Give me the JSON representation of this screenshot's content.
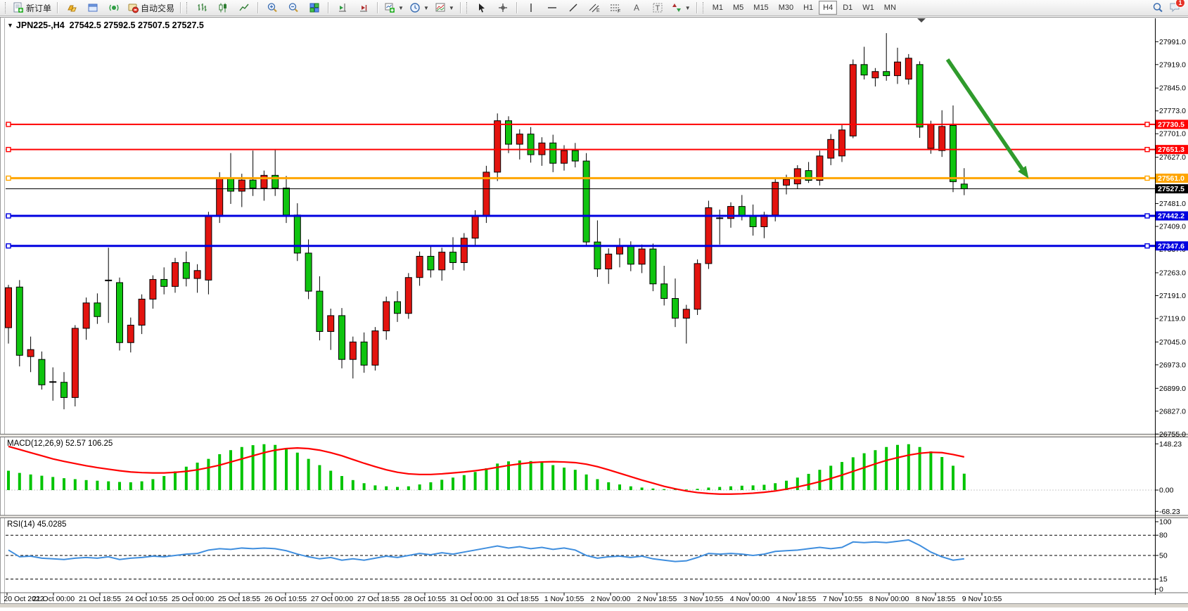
{
  "toolbar": {
    "new_order_label": "新订单",
    "autotrading_label": "自动交易",
    "timeframes": [
      "M1",
      "M5",
      "M15",
      "M30",
      "H1",
      "H4",
      "D1",
      "W1",
      "MN"
    ],
    "active_timeframe": "H4",
    "notification_badge": "1"
  },
  "chart": {
    "symbol_period": "JPN225-,H4",
    "ohlc_text": "27542.5 27592.5 27507.5 27527.5"
  },
  "indicators": {
    "macd_label": "MACD(12,26,9) 52.57 106.25",
    "rsi_label": "RSI(14) 45.0285"
  },
  "chart_data": {
    "type": "candlestick",
    "symbol": "JPN225-",
    "timeframe": "H4",
    "bull_color": "#e3140f",
    "bear_color": "#0fc40f",
    "current_bar": {
      "open": 27542.5,
      "high": 27592.5,
      "low": 27507.5,
      "close": 27527.5
    },
    "candles": [
      [
        27090,
        27225,
        27040,
        27216
      ],
      [
        27218,
        27240,
        26968,
        27003
      ],
      [
        26999,
        27062,
        26950,
        27021
      ],
      [
        26990,
        27015,
        26895,
        26910
      ],
      [
        26920,
        26965,
        26860,
        26918
      ],
      [
        26918,
        26950,
        26833,
        26870
      ],
      [
        26870,
        27098,
        26842,
        27088
      ],
      [
        27088,
        27185,
        27052,
        27168
      ],
      [
        27168,
        27198,
        27102,
        27125
      ],
      [
        27238,
        27342,
        27105,
        27240
      ],
      [
        27232,
        27248,
        27018,
        27043
      ],
      [
        27043,
        27122,
        27012,
        27098
      ],
      [
        27098,
        27195,
        27070,
        27180
      ],
      [
        27180,
        27255,
        27150,
        27242
      ],
      [
        27242,
        27280,
        27195,
        27220
      ],
      [
        27220,
        27310,
        27200,
        27295
      ],
      [
        27295,
        27330,
        27220,
        27245
      ],
      [
        27245,
        27290,
        27200,
        27270
      ],
      [
        27240,
        27455,
        27195,
        27440
      ],
      [
        27440,
        27580,
        27420,
        27560
      ],
      [
        27560,
        27640,
        27480,
        27520
      ],
      [
        27520,
        27575,
        27470,
        27555
      ],
      [
        27555,
        27648,
        27505,
        27530
      ],
      [
        27530,
        27585,
        27490,
        27570
      ],
      [
        27570,
        27652,
        27505,
        27530
      ],
      [
        27530,
        27568,
        27420,
        27445
      ],
      [
        27445,
        27482,
        27300,
        27325
      ],
      [
        27325,
        27368,
        27180,
        27205
      ],
      [
        27205,
        27252,
        27050,
        27078
      ],
      [
        27078,
        27150,
        27020,
        27128
      ],
      [
        27128,
        27152,
        26962,
        26990
      ],
      [
        26990,
        27062,
        26930,
        27045
      ],
      [
        27045,
        27075,
        26948,
        26972
      ],
      [
        26972,
        27092,
        26955,
        27080
      ],
      [
        27080,
        27188,
        27052,
        27172
      ],
      [
        27172,
        27205,
        27108,
        27135
      ],
      [
        27135,
        27262,
        27118,
        27248
      ],
      [
        27248,
        27330,
        27222,
        27315
      ],
      [
        27315,
        27345,
        27248,
        27272
      ],
      [
        27272,
        27342,
        27238,
        27328
      ],
      [
        27328,
        27375,
        27272,
        27295
      ],
      [
        27295,
        27388,
        27270,
        27372
      ],
      [
        27372,
        27460,
        27348,
        27442
      ],
      [
        27442,
        27600,
        27420,
        27580
      ],
      [
        27580,
        27765,
        27552,
        27742
      ],
      [
        27742,
        27756,
        27640,
        27668
      ],
      [
        27668,
        27715,
        27620,
        27700
      ],
      [
        27700,
        27722,
        27610,
        27635
      ],
      [
        27635,
        27690,
        27600,
        27672
      ],
      [
        27672,
        27698,
        27580,
        27608
      ],
      [
        27608,
        27665,
        27585,
        27648
      ],
      [
        27648,
        27672,
        27595,
        27615
      ],
      [
        27615,
        27640,
        27345,
        27360
      ],
      [
        27360,
        27428,
        27250,
        27275
      ],
      [
        27275,
        27340,
        27228,
        27322
      ],
      [
        27322,
        27372,
        27280,
        27348
      ],
      [
        27348,
        27362,
        27268,
        27290
      ],
      [
        27290,
        27352,
        27262,
        27338
      ],
      [
        27338,
        27355,
        27205,
        27228
      ],
      [
        27228,
        27285,
        27160,
        27182
      ],
      [
        27182,
        27245,
        27092,
        27120
      ],
      [
        27120,
        27162,
        27040,
        27148
      ],
      [
        27148,
        27305,
        27130,
        27292
      ],
      [
        27292,
        27490,
        27275,
        27468
      ],
      [
        27436,
        27462,
        27352,
        27434
      ],
      [
        27434,
        27485,
        27405,
        27472
      ],
      [
        27472,
        27508,
        27428,
        27442
      ],
      [
        27442,
        27478,
        27380,
        27408
      ],
      [
        27408,
        27455,
        27372,
        27445
      ],
      [
        27445,
        27562,
        27425,
        27548
      ],
      [
        27539,
        27572,
        27510,
        27557
      ],
      [
        27543,
        27602,
        27528,
        27591
      ],
      [
        27585,
        27612,
        27546,
        27554
      ],
      [
        27554,
        27648,
        27538,
        27631
      ],
      [
        27624,
        27700,
        27602,
        27683
      ],
      [
        27631,
        27728,
        27612,
        27713
      ],
      [
        27694,
        27935,
        27687,
        27919
      ],
      [
        27919,
        27975,
        27872,
        27886
      ],
      [
        27877,
        27908,
        27850,
        27897
      ],
      [
        27897,
        28018,
        27868,
        27884
      ],
      [
        27884,
        27972,
        27858,
        27927
      ],
      [
        27873,
        27952,
        27856,
        27939
      ],
      [
        27919,
        27929,
        27688,
        27722
      ],
      [
        27655,
        27742,
        27638,
        27731
      ],
      [
        27648,
        27775,
        27628,
        27724
      ],
      [
        27727,
        27790,
        27517,
        27550
      ],
      [
        27542.5,
        27592.5,
        27507.5,
        27527.5
      ]
    ],
    "levels": [
      {
        "label": "27730.5",
        "price": 27730.5,
        "color": "#ff0000",
        "width": 2,
        "anchors": true
      },
      {
        "label": "27651.3",
        "price": 27651.3,
        "color": "#ff0000",
        "width": 2,
        "anchors": true
      },
      {
        "label": "27561.0",
        "price": 27561.0,
        "color": "#ffa500",
        "width": 3,
        "anchors": true
      },
      {
        "label": "27527.5",
        "price": 27527.5,
        "color": "#000000",
        "width": 1,
        "anchors": false
      },
      {
        "label": "27442.2",
        "price": 27442.2,
        "color": "#0000e0",
        "width": 3,
        "anchors": true
      },
      {
        "label": "27347.6",
        "price": 27347.6,
        "color": "#0000e0",
        "width": 3,
        "anchors": true
      }
    ],
    "price_ticks": [
      "27991.0",
      "27919.0",
      "27845.0",
      "27773.0",
      "27701.0",
      "27627.0",
      "27555.0",
      "27481.0",
      "27409.0",
      "27337.0",
      "27263.0",
      "27191.0",
      "27119.0",
      "27045.0",
      "26973.0",
      "26899.0",
      "26827.0",
      "26755.0"
    ],
    "time_labels": [
      "20 Oct 2022",
      "21 Oct 00:00",
      "21 Oct 18:55",
      "24 Oct 10:55",
      "25 Oct 00:00",
      "25 Oct 18:55",
      "26 Oct 10:55",
      "27 Oct 00:00",
      "27 Oct 18:55",
      "28 Oct 10:55",
      "31 Oct 00:00",
      "31 Oct 18:55",
      "1 Nov 10:55",
      "2 Nov 00:00",
      "2 Nov 18:55",
      "3 Nov 10:55",
      "4 Nov 00:00",
      "4 Nov 18:55",
      "7 Nov 10:55",
      "8 Nov 00:00",
      "8 Nov 18:55",
      "9 Nov 10:55"
    ],
    "macd": {
      "name": "MACD(12,26,9)",
      "current_main": 52.57,
      "current_signal": 106.25,
      "hist_color": "#00c400",
      "signal_color": "#ff0000",
      "ticks": [
        {
          "label": "148.23",
          "value": 148.23
        },
        {
          "label": "0.00",
          "value": 0
        },
        {
          "label": "-68.23",
          "value": -68.23
        }
      ],
      "histogram": [
        62,
        55,
        50,
        46,
        42,
        38,
        35,
        32,
        30,
        28,
        26,
        25,
        28,
        35,
        45,
        60,
        75,
        88,
        100,
        115,
        128,
        138,
        144,
        147,
        145,
        135,
        120,
        100,
        80,
        62,
        45,
        32,
        22,
        15,
        12,
        10,
        12,
        18,
        25,
        33,
        40,
        48,
        58,
        70,
        85,
        92,
        95,
        93,
        88,
        80,
        72,
        65,
        50,
        35,
        25,
        18,
        12,
        8,
        5,
        3,
        2,
        2,
        4,
        8,
        10,
        12,
        14,
        15,
        17,
        22,
        30,
        40,
        52,
        65,
        78,
        90,
        105,
        118,
        128,
        138,
        145,
        147,
        138,
        124,
        106,
        78,
        52.57
      ],
      "signal": [
        140,
        130,
        120,
        110,
        100,
        92,
        85,
        78,
        72,
        67,
        62,
        58,
        56,
        55,
        55,
        57,
        60,
        65,
        72,
        80,
        90,
        100,
        110,
        120,
        128,
        133,
        135,
        133,
        128,
        120,
        110,
        98,
        86,
        75,
        65,
        57,
        52,
        50,
        50,
        52,
        55,
        58,
        62,
        67,
        73,
        79,
        84,
        88,
        90,
        91,
        90,
        88,
        83,
        75,
        65,
        54,
        43,
        32,
        22,
        12,
        4,
        -3,
        -8,
        -11,
        -13,
        -13,
        -12,
        -10,
        -7,
        -3,
        3,
        10,
        18,
        27,
        37,
        48,
        60,
        72,
        84,
        95,
        104,
        112,
        118,
        121,
        120,
        114,
        106.25
      ]
    },
    "rsi": {
      "name": "RSI(14)",
      "current": 45.0285,
      "line_color": "#3f8ede",
      "dashed_levels": [
        80,
        50,
        15
      ],
      "ticks": [
        {
          "label": "100",
          "value": 100
        },
        {
          "label": "80",
          "value": 80
        },
        {
          "label": "50",
          "value": 50
        },
        {
          "label": "15",
          "value": 15
        },
        {
          "label": "0",
          "value": 0
        }
      ],
      "values": [
        58,
        48,
        49,
        46,
        45,
        44,
        46,
        47,
        46,
        48,
        44,
        46,
        47,
        49,
        48,
        50,
        52,
        53,
        58,
        60,
        59,
        61,
        60,
        61,
        60,
        57,
        52,
        48,
        45,
        47,
        43,
        45,
        43,
        46,
        49,
        47,
        50,
        53,
        51,
        54,
        52,
        55,
        58,
        61,
        64,
        61,
        63,
        60,
        62,
        59,
        61,
        58,
        50,
        46,
        48,
        49,
        47,
        49,
        45,
        43,
        41,
        42,
        47,
        53,
        52,
        53,
        52,
        50,
        52,
        56,
        57,
        58,
        60,
        62,
        60,
        62,
        70,
        69,
        70,
        69,
        71,
        73,
        65,
        55,
        48,
        43,
        45.03
      ],
      "ylim": [
        0,
        100
      ]
    },
    "annotation_arrow": {
      "color": "#2f9b2c",
      "from": {
        "bar": 84.5,
        "price": 27935
      },
      "to": {
        "bar": 91.8,
        "price": 27560
      }
    }
  }
}
